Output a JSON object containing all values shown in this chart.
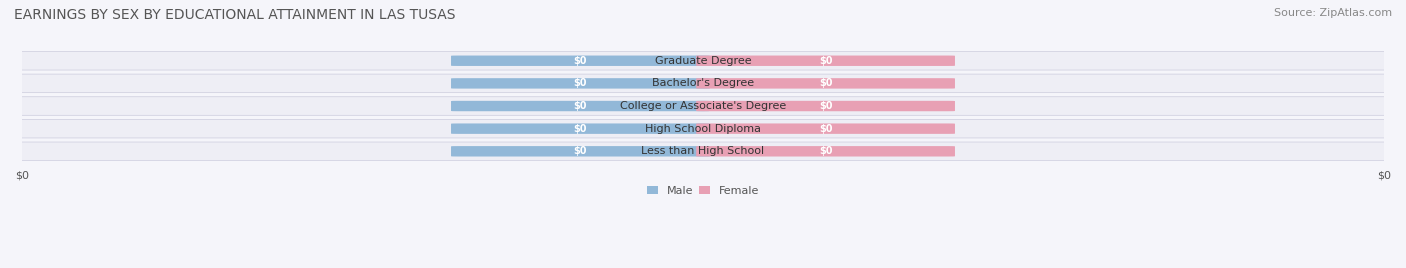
{
  "title": "EARNINGS BY SEX BY EDUCATIONAL ATTAINMENT IN LAS TUSAS",
  "source": "Source: ZipAtlas.com",
  "categories": [
    "Less than High School",
    "High School Diploma",
    "College or Associate's Degree",
    "Bachelor's Degree",
    "Graduate Degree"
  ],
  "male_values": [
    0,
    0,
    0,
    0,
    0
  ],
  "female_values": [
    0,
    0,
    0,
    0,
    0
  ],
  "male_color": "#92b8d8",
  "female_color": "#e8a0b4",
  "title_fontsize": 10,
  "source_fontsize": 8,
  "label_fontsize": 8,
  "tick_fontsize": 8,
  "legend_fontsize": 8,
  "figsize": [
    14.06,
    2.68
  ],
  "dpi": 100
}
